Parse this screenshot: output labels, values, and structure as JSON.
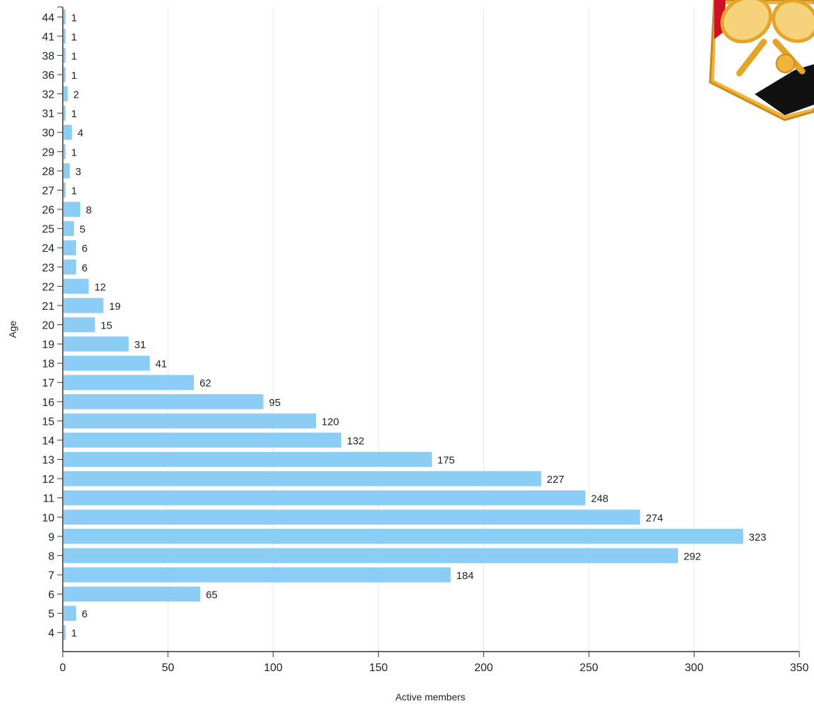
{
  "chart_data": {
    "type": "bar",
    "orientation": "horizontal",
    "xlabel": "Active members",
    "ylabel": "Age",
    "xlim": [
      0,
      350
    ],
    "x_ticks": [
      0,
      50,
      100,
      150,
      200,
      250,
      300,
      350
    ],
    "grid": "vertical",
    "categories": [
      "4",
      "5",
      "6",
      "7",
      "8",
      "9",
      "10",
      "11",
      "12",
      "13",
      "14",
      "15",
      "16",
      "17",
      "18",
      "19",
      "20",
      "21",
      "22",
      "23",
      "24",
      "25",
      "26",
      "27",
      "28",
      "29",
      "30",
      "31",
      "32",
      "36",
      "38",
      "41",
      "44"
    ],
    "values": [
      1,
      6,
      65,
      184,
      292,
      323,
      274,
      248,
      227,
      175,
      132,
      120,
      95,
      62,
      41,
      31,
      15,
      19,
      12,
      6,
      6,
      5,
      8,
      1,
      3,
      1,
      4,
      1,
      2,
      1,
      1,
      1,
      1
    ],
    "bar_color": "#8ccdf5",
    "logo": {
      "name": "tennis-club-logo",
      "colors": [
        "#f0b43a",
        "#ce1126",
        "#ffffff",
        "#111111"
      ]
    }
  }
}
